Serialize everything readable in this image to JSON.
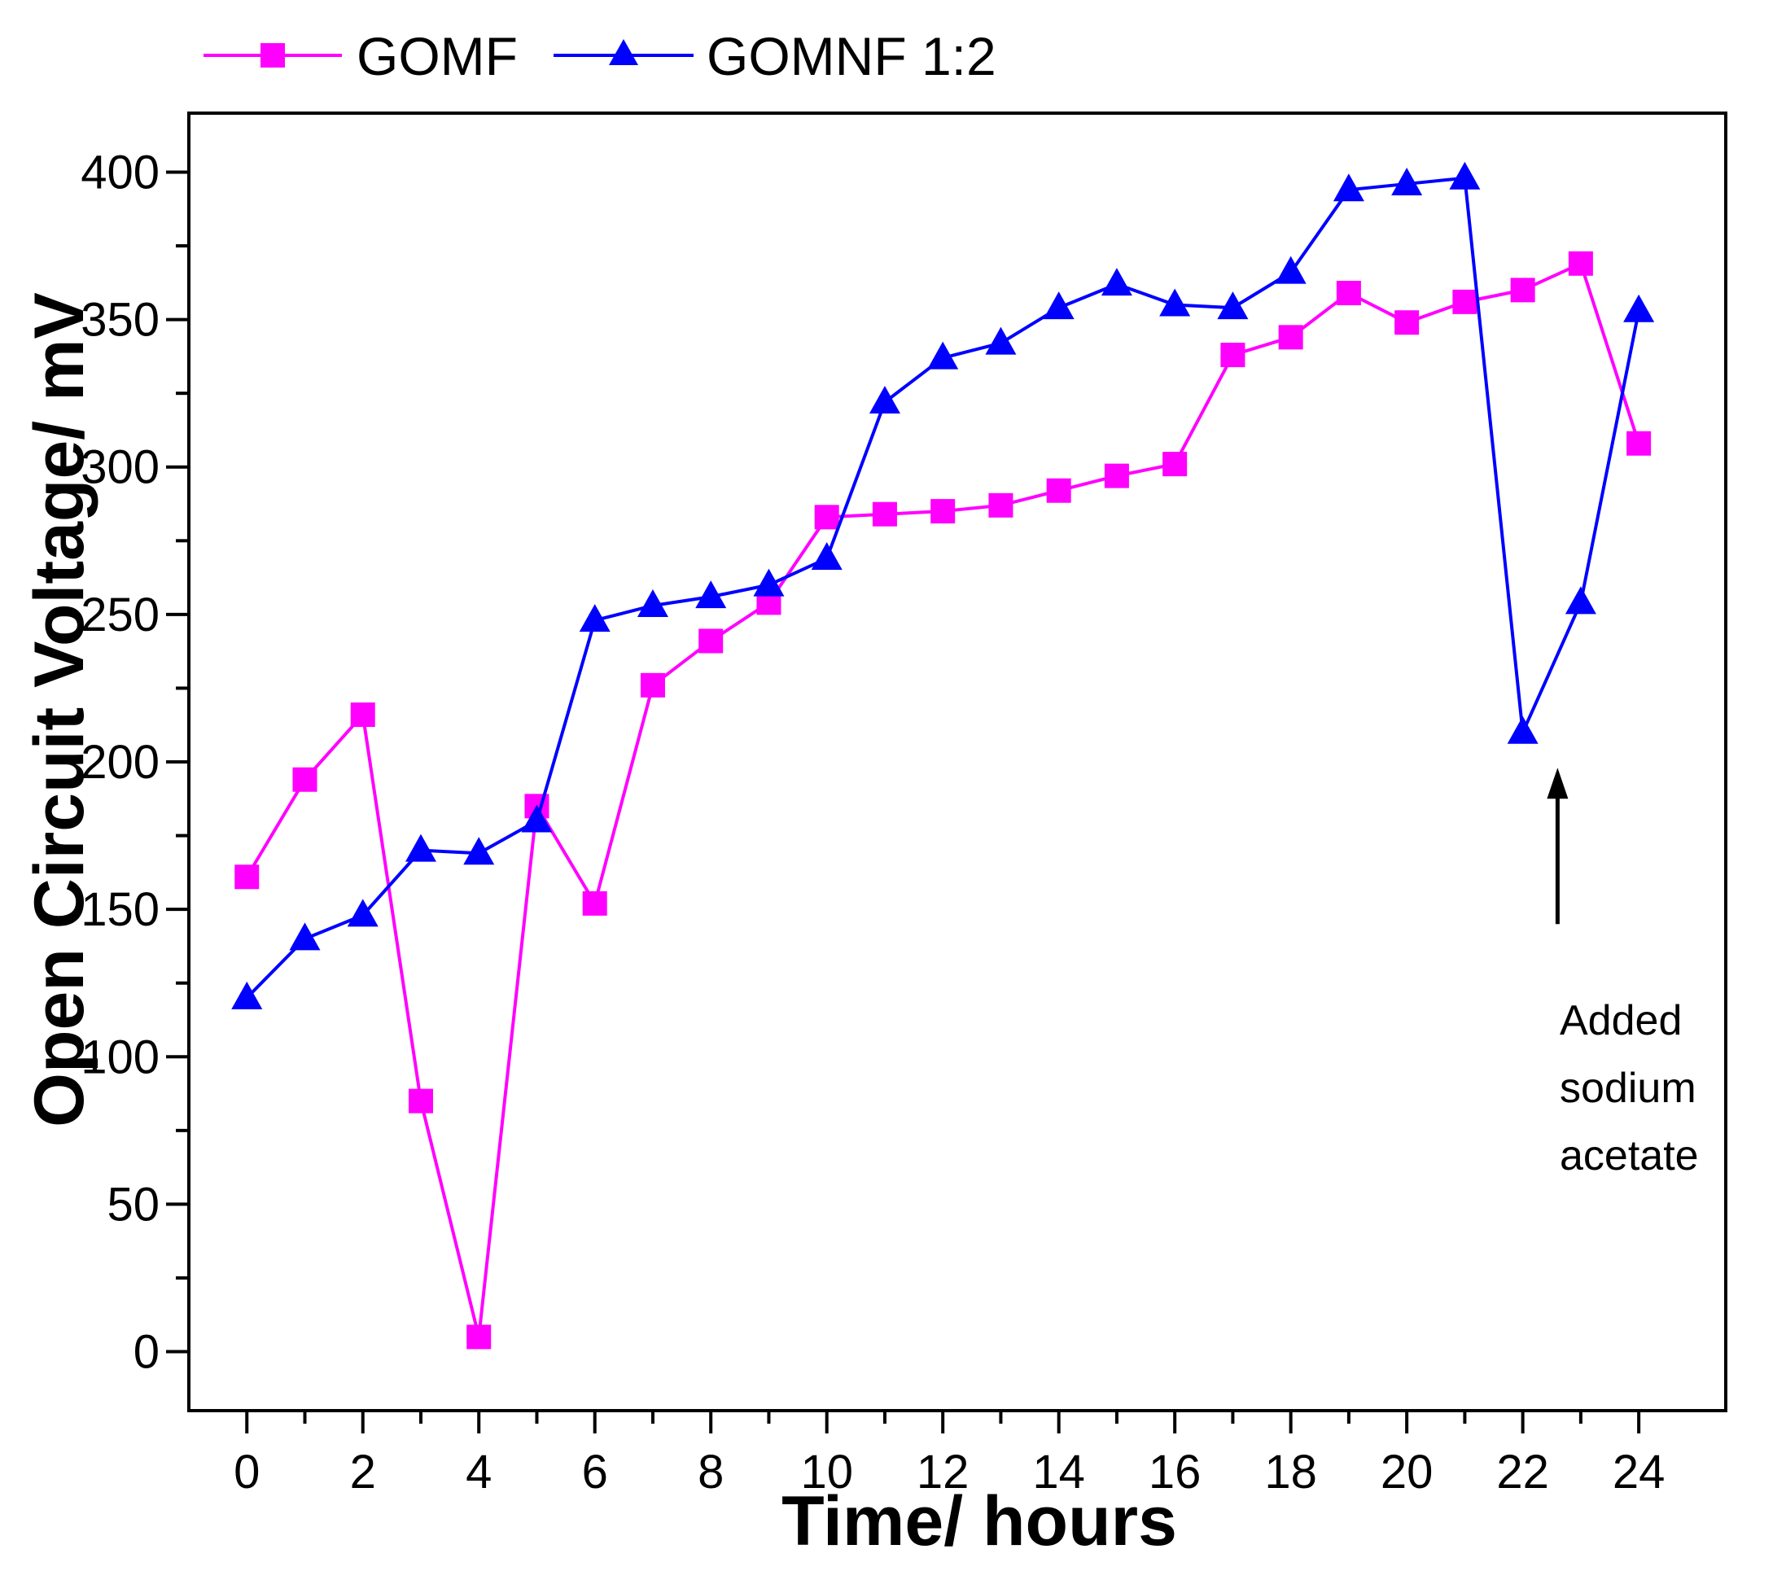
{
  "chart_data": {
    "type": "line",
    "title": "",
    "xlabel": "Time/ hours",
    "ylabel": "Open Circuit Voltage/ mV",
    "xlim": [
      -1,
      25.5
    ],
    "ylim": [
      -20,
      420
    ],
    "x_ticks": [
      0,
      2,
      4,
      6,
      8,
      10,
      12,
      14,
      16,
      18,
      20,
      22,
      24
    ],
    "x_tick_labels": [
      "0",
      "2",
      "4",
      "6",
      "8",
      "10",
      "12",
      "14",
      "16",
      "18",
      "20",
      "22",
      "24"
    ],
    "y_ticks": [
      0,
      50,
      100,
      150,
      200,
      250,
      300,
      350,
      400
    ],
    "y_tick_labels": [
      "0",
      "50",
      "100",
      "150",
      "200",
      "250",
      "300",
      "350",
      "400"
    ],
    "x_minor_ticks": [
      1,
      3,
      5,
      7,
      9,
      11,
      13,
      15,
      17,
      19,
      21,
      23
    ],
    "y_minor_ticks": [
      25,
      75,
      125,
      175,
      225,
      275,
      325,
      375
    ],
    "grid": false,
    "legend_position": "top-left, above plot",
    "x": [
      0,
      1,
      2,
      3,
      4,
      5,
      6,
      7,
      8,
      9,
      10,
      11,
      12,
      13,
      14,
      15,
      16,
      17,
      18,
      19,
      20,
      21,
      22,
      23,
      24
    ],
    "series": [
      {
        "name": "GOMF",
        "color": "#ff00ff",
        "marker": "square",
        "values": [
          161,
          194,
          216,
          85,
          5,
          185,
          152,
          226,
          241,
          254,
          283,
          284,
          285,
          287,
          292,
          297,
          301,
          338,
          344,
          359,
          349,
          356,
          360,
          369,
          308
        ]
      },
      {
        "name": "GOMNF 1:2",
        "color": "#0000ff",
        "marker": "triangle",
        "values": [
          120,
          140,
          148,
          170,
          169,
          180,
          248,
          253,
          256,
          260,
          269,
          322,
          337,
          342,
          354,
          362,
          355,
          354,
          366,
          394,
          396,
          398,
          210,
          254,
          353
        ]
      }
    ],
    "annotation": {
      "lines": [
        "Added",
        "sodium",
        "acetate"
      ],
      "arrow_x": 22.6,
      "arrow_from_y": 145,
      "arrow_to_y": 198
    }
  }
}
